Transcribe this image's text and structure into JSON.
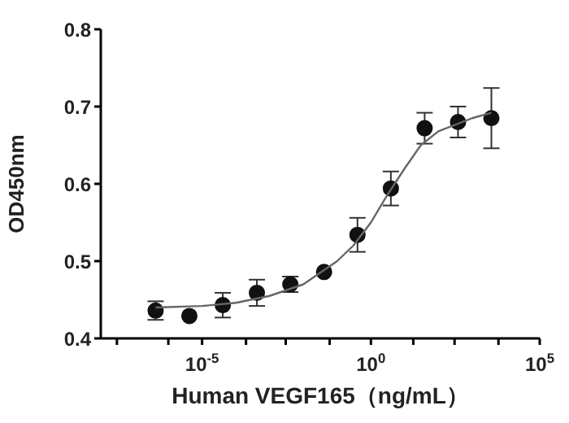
{
  "chart_data": {
    "type": "scatter",
    "xlabel": "Human VEGF165（ng/mL）",
    "ylabel": "OD450nm",
    "log": "x",
    "xlim": [
      1e-08,
      100000
    ],
    "ylim": [
      0.4,
      0.8
    ],
    "yticks": [
      0.4,
      0.5,
      0.6,
      0.7,
      0.8
    ],
    "xticks": [
      {
        "value": 3e-08,
        "label": null
      },
      {
        "value": 1e-06,
        "label": null
      },
      {
        "value": 1e-05,
        "label": "10$^{-5}$"
      },
      {
        "value": 0.0002,
        "label": null
      },
      {
        "value": 0.003,
        "label": null
      },
      {
        "value": 0.06,
        "label": null
      },
      {
        "value": 1,
        "label": "10$^{0}$"
      },
      {
        "value": 18,
        "label": null
      },
      {
        "value": 300,
        "label": null
      },
      {
        "value": 6000,
        "label": null
      },
      {
        "value": 100000,
        "label": "10$^{5}$"
      }
    ],
    "series": [
      {
        "color": "#111111",
        "marker": "circle",
        "x": [
          4.2e-07,
          4.2e-06,
          4.1e-05,
          0.00042,
          0.0041,
          0.041,
          0.4,
          3.9,
          39,
          380,
          3700
        ],
        "values": [
          0.436,
          0.429,
          0.443,
          0.459,
          0.47,
          0.486,
          0.534,
          0.594,
          0.672,
          0.68,
          0.685
        ],
        "errors": [
          0.012,
          null,
          0.016,
          0.017,
          0.01,
          null,
          0.022,
          0.022,
          0.02,
          0.02,
          0.039
        ]
      },
      {
        "type": "line",
        "color": "#666666",
        "marker": "none",
        "x": [
          4.2e-07,
          1e-05,
          0.0001,
          0.001,
          0.01,
          0.1,
          0.3,
          1,
          3,
          10,
          30,
          100,
          1000,
          3700
        ],
        "values": [
          0.44,
          0.442,
          0.446,
          0.455,
          0.47,
          0.5,
          0.52,
          0.55,
          0.585,
          0.62,
          0.65,
          0.668,
          0.685,
          0.692
        ]
      }
    ]
  }
}
